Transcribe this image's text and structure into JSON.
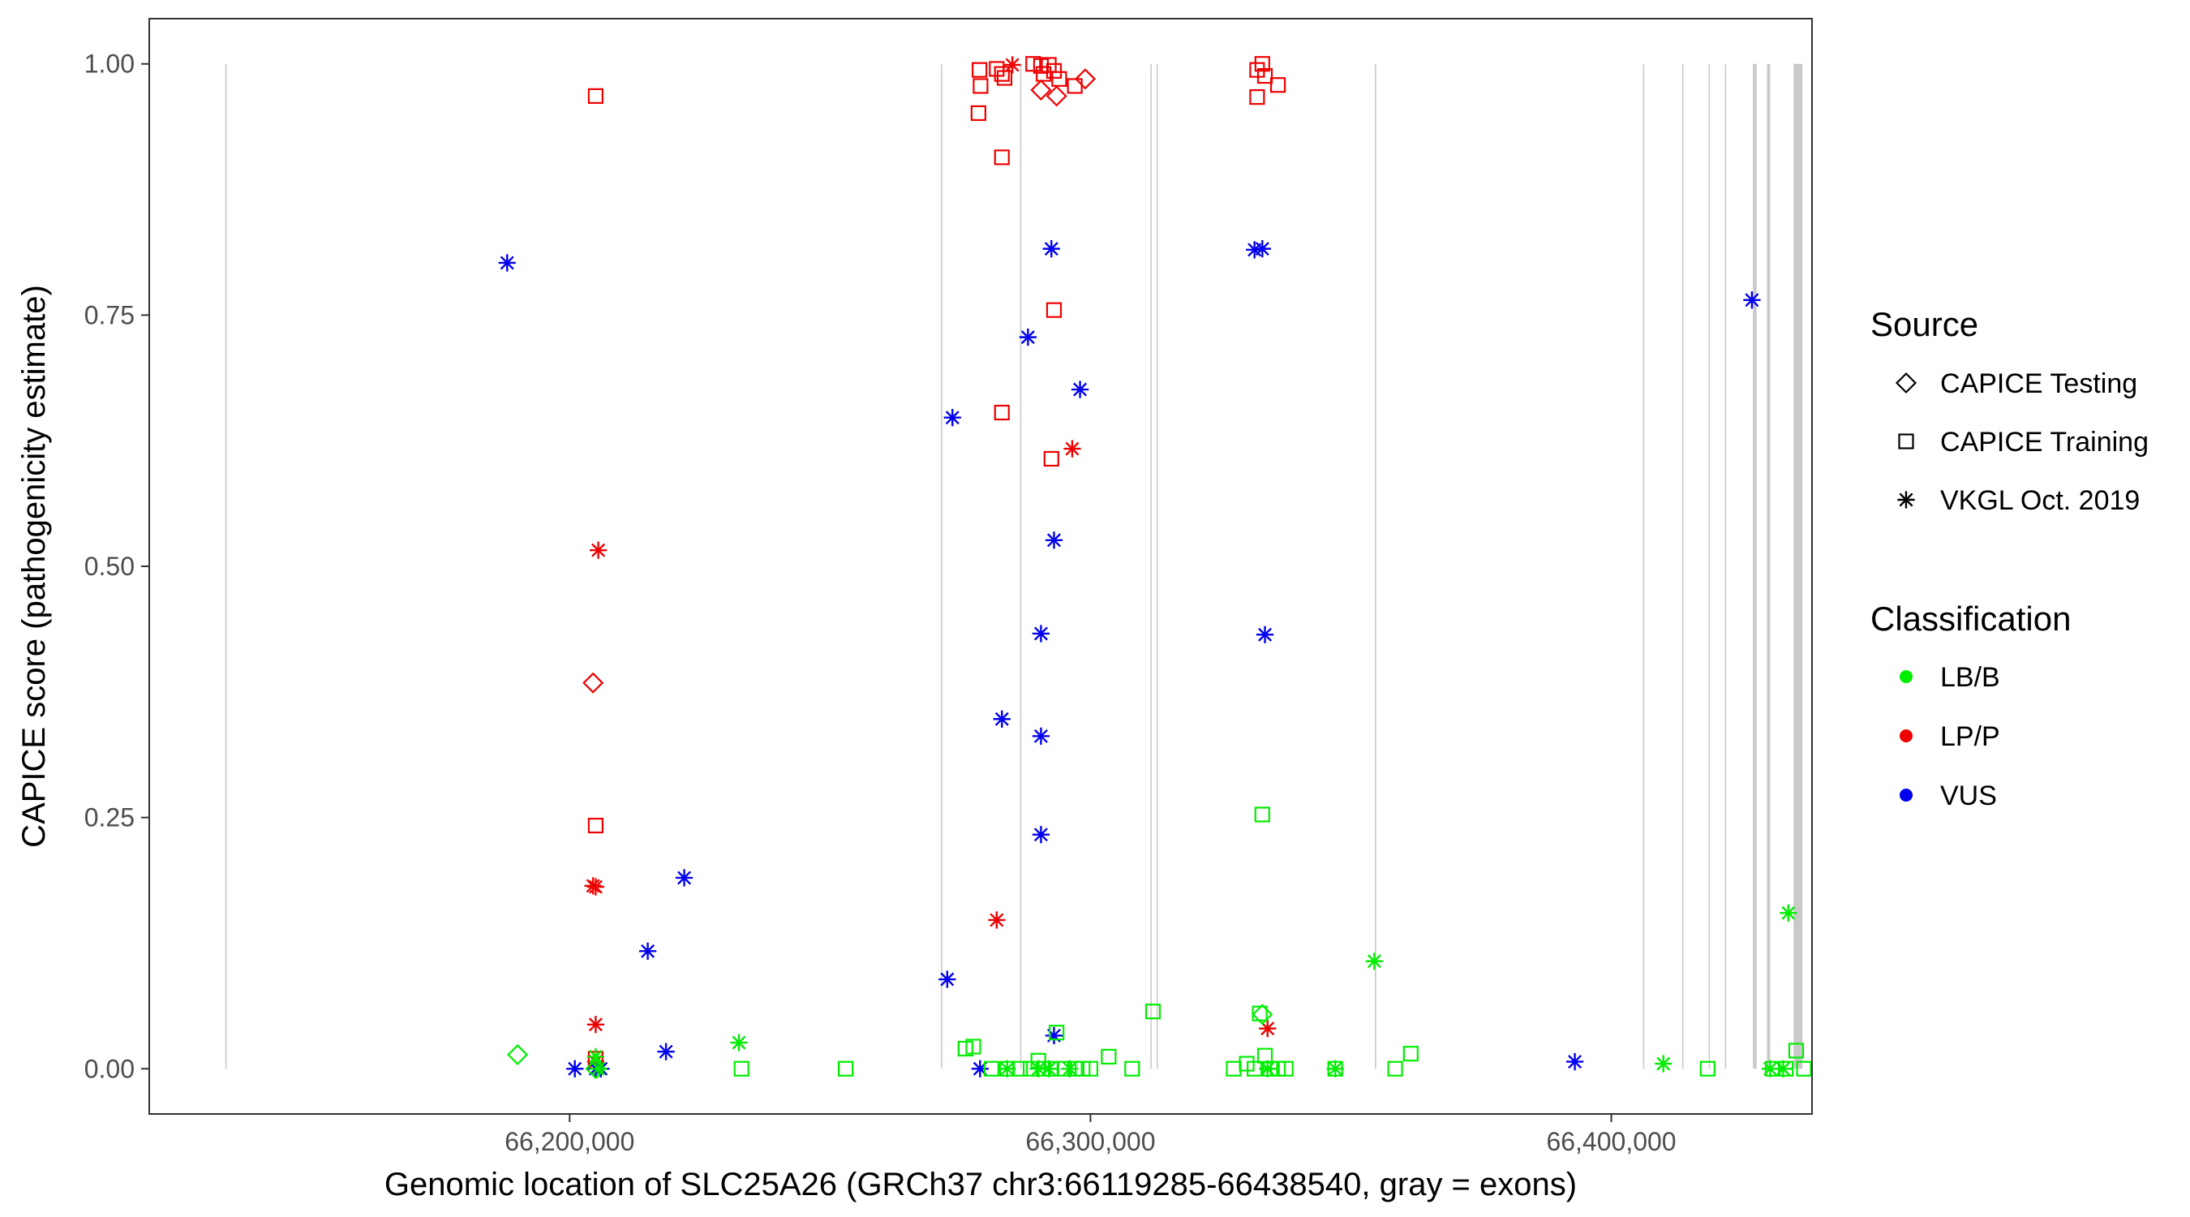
{
  "chart_data": {
    "type": "scatter",
    "title": "",
    "xlabel": "Genomic location of SLC25A26 (GRCh37 chr3:66119285-66438540, gray = exons)",
    "ylabel": "CAPICE score (pathogenicity estimate)",
    "xlim": [
      66119285,
      66438540
    ],
    "ylim": [
      -0.045,
      1.045
    ],
    "x_ticks": [
      66200000,
      66300000,
      66400000
    ],
    "x_tick_labels": [
      "66,200,000",
      "66,300,000",
      "66,400,000"
    ],
    "y_ticks": [
      0,
      0.25,
      0.5,
      0.75,
      1.0
    ],
    "y_tick_labels": [
      "0.00",
      "0.25",
      "0.50",
      "0.75",
      "1.00"
    ],
    "grid": false,
    "exons": [
      {
        "start": 66133900,
        "end": 66134000
      },
      {
        "start": 66271300,
        "end": 66271500
      },
      {
        "start": 66286500,
        "end": 66286700
      },
      {
        "start": 66311500,
        "end": 66311700
      },
      {
        "start": 66312700,
        "end": 66312900
      },
      {
        "start": 66354600,
        "end": 66354800
      },
      {
        "start": 66406100,
        "end": 66406300
      },
      {
        "start": 66413600,
        "end": 66413800
      },
      {
        "start": 66418700,
        "end": 66418900
      },
      {
        "start": 66421800,
        "end": 66422000
      },
      {
        "start": 66427200,
        "end": 66427900
      },
      {
        "start": 66429900,
        "end": 66430500
      },
      {
        "start": 66435000,
        "end": 66436700
      }
    ],
    "legend": {
      "placement": "right",
      "source_title": "Source",
      "source_entries": [
        {
          "label": "CAPICE Testing",
          "shape": "diamond"
        },
        {
          "label": "CAPICE Training",
          "shape": "square"
        },
        {
          "label": "VKGL Oct. 2019",
          "shape": "asterisk"
        }
      ],
      "class_title": "Classification",
      "class_entries": [
        {
          "label": "LB/B",
          "color": "#00ee00"
        },
        {
          "label": "LP/P",
          "color": "#ee0000"
        },
        {
          "label": "VUS",
          "color": "#0000ee"
        }
      ]
    },
    "colors": {
      "LB/B": "#00ee00",
      "LP/P": "#ee0000",
      "VUS": "#0000ee"
    },
    "series": [
      {
        "name": "LP/P",
        "source": "CAPICE Training",
        "shape": "square",
        "points": [
          [
            66205000,
            0.968
          ],
          [
            66205000,
            0.242
          ],
          [
            66205000,
            0.01
          ],
          [
            66278700,
            0.994
          ],
          [
            66278900,
            0.978
          ],
          [
            66278500,
            0.951
          ],
          [
            66282000,
            0.995
          ],
          [
            66283000,
            0.99
          ],
          [
            66283500,
            0.986
          ],
          [
            66283000,
            0.907
          ],
          [
            66283000,
            0.653
          ],
          [
            66289000,
            1.0
          ],
          [
            66290500,
            0.998
          ],
          [
            66291000,
            0.99
          ],
          [
            66292000,
            0.999
          ],
          [
            66293000,
            0.993
          ],
          [
            66294000,
            0.985
          ],
          [
            66293000,
            0.755
          ],
          [
            66292500,
            0.607
          ],
          [
            66297000,
            0.978
          ],
          [
            66332000,
            0.994
          ],
          [
            66333000,
            1.0
          ],
          [
            66333500,
            0.988
          ],
          [
            66332000,
            0.967
          ],
          [
            66336000,
            0.979
          ]
        ]
      },
      {
        "name": "LP/P",
        "source": "CAPICE Testing",
        "shape": "diamond",
        "points": [
          [
            66204500,
            0.384
          ],
          [
            66290500,
            0.974
          ],
          [
            66293500,
            0.968
          ],
          [
            66299000,
            0.985
          ]
        ]
      },
      {
        "name": "LP/P",
        "source": "VKGL Oct. 2019",
        "shape": "asterisk",
        "points": [
          [
            66205500,
            0.516
          ],
          [
            66204500,
            0.182
          ],
          [
            66205000,
            0.181
          ],
          [
            66205000,
            0.044
          ],
          [
            66205000,
            0.007
          ],
          [
            66282000,
            0.148
          ],
          [
            66296500,
            0.617
          ],
          [
            66285000,
            0.999
          ],
          [
            66334000,
            0.04
          ]
        ]
      },
      {
        "name": "VUS",
        "source": "VKGL Oct. 2019",
        "shape": "asterisk",
        "points": [
          [
            66188000,
            0.802
          ],
          [
            66201000,
            0.0
          ],
          [
            66205000,
            0.0
          ],
          [
            66206000,
            0.0
          ],
          [
            66215000,
            0.117
          ],
          [
            66218500,
            0.017
          ],
          [
            66222000,
            0.19
          ],
          [
            66273500,
            0.648
          ],
          [
            66272500,
            0.089
          ],
          [
            66278800,
            0.0
          ],
          [
            66283000,
            0.348
          ],
          [
            66288000,
            0.728
          ],
          [
            66290500,
            0.433
          ],
          [
            66290500,
            0.331
          ],
          [
            66290500,
            0.233
          ],
          [
            66292500,
            0.816
          ],
          [
            66293000,
            0.526
          ],
          [
            66293000,
            0.033
          ],
          [
            66298000,
            0.676
          ],
          [
            66331500,
            0.815
          ],
          [
            66333000,
            0.816
          ],
          [
            66333500,
            0.432
          ],
          [
            66393000,
            0.007
          ],
          [
            66427000,
            0.765
          ]
        ]
      },
      {
        "name": "LB/B",
        "source": "CAPICE Training",
        "shape": "square",
        "points": [
          [
            66233000,
            0.0
          ],
          [
            66253000,
            0.0
          ],
          [
            66276000,
            0.02
          ],
          [
            66277500,
            0.022
          ],
          [
            66281000,
            0.0
          ],
          [
            66284000,
            0.0
          ],
          [
            66286500,
            0.0
          ],
          [
            66288500,
            0.0
          ],
          [
            66290000,
            0.008
          ],
          [
            66291000,
            0.0
          ],
          [
            66292500,
            0.0
          ],
          [
            66293500,
            0.036
          ],
          [
            66295000,
            0.0
          ],
          [
            66297000,
            0.0
          ],
          [
            66298500,
            0.0
          ],
          [
            66300000,
            0.0
          ],
          [
            66303500,
            0.012
          ],
          [
            66308000,
            0.0
          ],
          [
            66312000,
            0.057
          ],
          [
            66327500,
            0.0
          ],
          [
            66330000,
            0.005
          ],
          [
            66331500,
            0.0
          ],
          [
            66332500,
            0.055
          ],
          [
            66333000,
            0.253
          ],
          [
            66333500,
            0.013
          ],
          [
            66334500,
            0.0
          ],
          [
            66336000,
            0.0
          ],
          [
            66337500,
            0.0
          ],
          [
            66347000,
            0.0
          ],
          [
            66358500,
            0.0
          ],
          [
            66361500,
            0.015
          ],
          [
            66418500,
            0.0
          ],
          [
            66431000,
            0.0
          ],
          [
            66433500,
            0.0
          ],
          [
            66435500,
            0.018
          ],
          [
            66437000,
            0.0
          ]
        ]
      },
      {
        "name": "LB/B",
        "source": "CAPICE Testing",
        "shape": "diamond",
        "points": [
          [
            66190000,
            0.014
          ],
          [
            66205000,
            0.0
          ],
          [
            66333000,
            0.054
          ]
        ]
      },
      {
        "name": "LB/B",
        "source": "VKGL Oct. 2019",
        "shape": "asterisk",
        "points": [
          [
            66205000,
            0.012
          ],
          [
            66205500,
            0.0
          ],
          [
            66232500,
            0.026
          ],
          [
            66284000,
            0.0
          ],
          [
            66290000,
            0.0
          ],
          [
            66292000,
            0.0
          ],
          [
            66296000,
            0.0
          ],
          [
            66334000,
            0.0
          ],
          [
            66347000,
            0.0
          ],
          [
            66354500,
            0.107
          ],
          [
            66410000,
            0.005
          ],
          [
            66430500,
            0.0
          ],
          [
            66433000,
            0.0
          ],
          [
            66434000,
            0.155
          ]
        ]
      }
    ]
  }
}
